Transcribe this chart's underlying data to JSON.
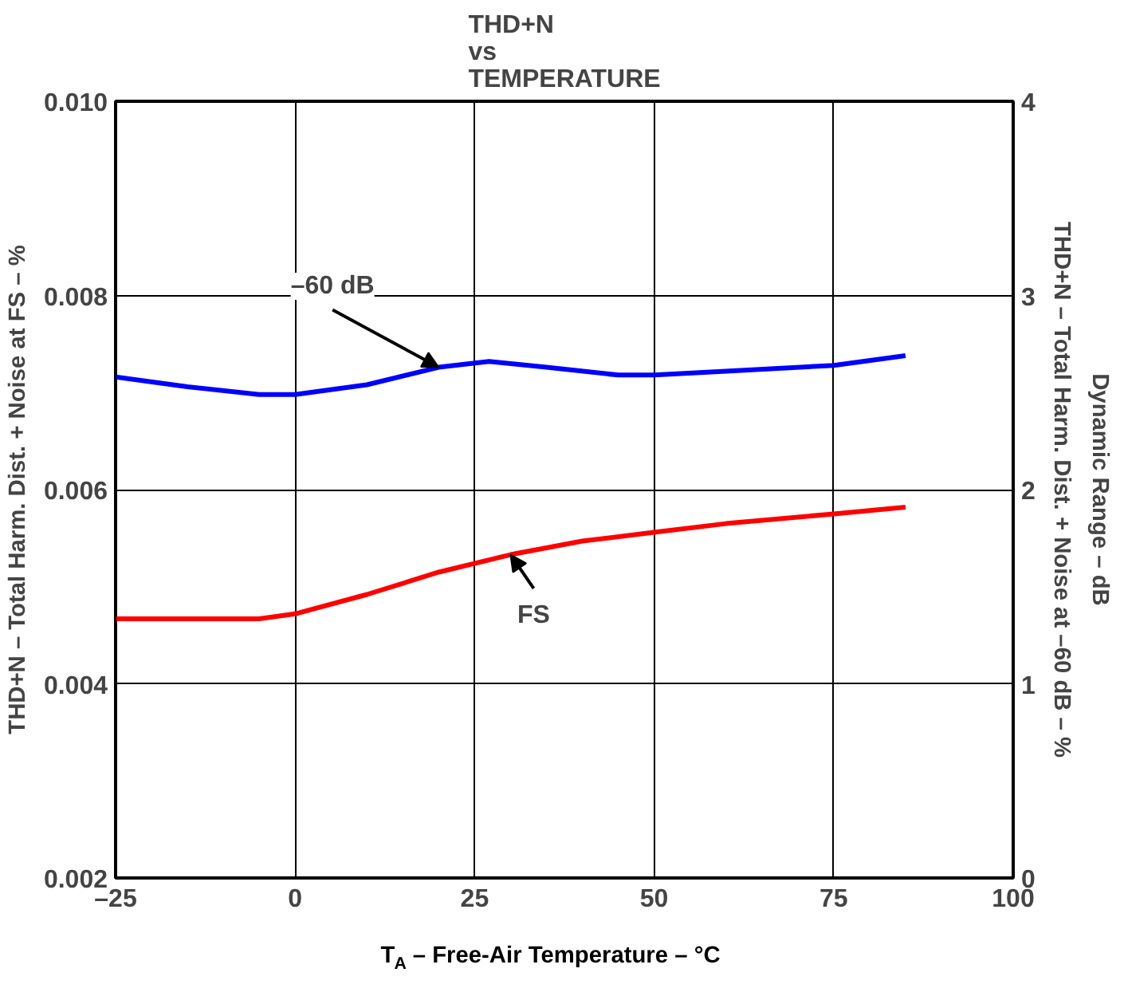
{
  "chart_data": {
    "type": "line",
    "title": "THD+N\nvs\nTEMPERATURE",
    "xlabel": "T$_{A}$ – Free-Air Temperature – °C",
    "ylabel": "THD+N – Total Harm. Dist. + Noise at FS – %",
    "y2label": "THD+N – Total Harm. Dist. + Noise at –60 dB – %",
    "y3label": "Dynamic Range – dB",
    "series": [
      {
        "name": "–60 dB",
        "color": "#0000ff",
        "axis": "y2",
        "x": [
          -25,
          -15,
          -5,
          0,
          10,
          20,
          27,
          35,
          45,
          50,
          60,
          75,
          85
        ],
        "values": [
          2.58,
          2.53,
          2.49,
          2.49,
          2.54,
          2.63,
          2.66,
          2.63,
          2.59,
          2.59,
          2.61,
          2.64,
          2.69
        ]
      },
      {
        "name": "FS",
        "color": "#ff0000",
        "x": [
          -25,
          -15,
          -5,
          0,
          10,
          20,
          30,
          40,
          50,
          60,
          75,
          85
        ],
        "values": [
          0.00467,
          0.00467,
          0.00467,
          0.00472,
          0.00492,
          0.00515,
          0.00533,
          0.00547,
          0.00556,
          0.00565,
          0.00575,
          0.00582
        ]
      }
    ],
    "xlim": [
      -25,
      100
    ],
    "xticks": [
      {
        "value": -25,
        "label": "–25"
      },
      0,
      25,
      50,
      75,
      100
    ],
    "ylim": [
      0.002,
      0.01
    ],
    "yticks": [
      0.002,
      0.004,
      0.006,
      0.008,
      {
        "value": 0.01,
        "label": "0.010"
      }
    ],
    "y2lim": [
      0,
      4
    ],
    "y2ticks": [
      0,
      1,
      2,
      3,
      4
    ],
    "grid": true,
    "line_style": "solid"
  }
}
